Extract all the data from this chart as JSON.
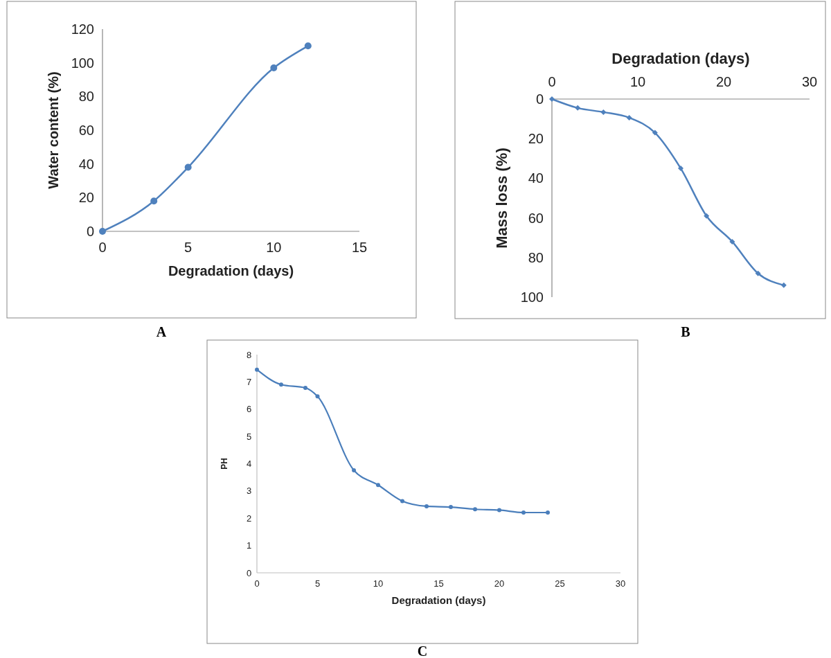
{
  "chart_data": [
    {
      "type": "line",
      "xlabel": "Degradation (days)",
      "ylabel": "Water content  (%)",
      "annotations": [
        "A"
      ],
      "x": [
        0,
        3,
        5,
        10,
        12
      ],
      "xlim": [
        0,
        15
      ],
      "xticks": [
        0,
        5,
        10,
        15
      ],
      "ylim": [
        0,
        120
      ],
      "yticks": [
        0,
        20,
        40,
        60,
        80,
        100,
        120
      ],
      "grid": false,
      "marker": "circle",
      "line_style": "solid",
      "series": [
        {
          "color": "#4f81bd",
          "values": [
            0,
            18,
            38,
            97,
            110
          ]
        }
      ]
    },
    {
      "type": "line",
      "xlabel": "Degradation (days)",
      "ylabel": "Mass loss (%)",
      "annotations": [
        "B"
      ],
      "x": [
        0,
        3,
        6,
        9,
        12,
        15,
        18,
        21,
        24,
        27
      ],
      "xlim": [
        0,
        30
      ],
      "xticks": [
        0,
        10,
        20,
        30
      ],
      "ylim": [
        100,
        0
      ],
      "yticks": [
        0,
        20,
        40,
        60,
        80,
        100
      ],
      "grid": false,
      "marker": "diamond",
      "line_style": "solid",
      "series": [
        {
          "color": "#4f81bd",
          "values": [
            0,
            4.5,
            6.6,
            9.4,
            17,
            35,
            59,
            72,
            88,
            94
          ]
        }
      ]
    },
    {
      "type": "line",
      "xlabel": "Degradation (days)",
      "ylabel": "PH",
      "annotations": [
        "C"
      ],
      "x": [
        0,
        2,
        4,
        5,
        8,
        10,
        12,
        14,
        16,
        18,
        20,
        22,
        24
      ],
      "xlim": [
        0,
        30
      ],
      "xticks": [
        0,
        5,
        10,
        15,
        20,
        25,
        30
      ],
      "ylim": [
        0,
        8
      ],
      "yticks": [
        0,
        1,
        2,
        3,
        4,
        5,
        6,
        7,
        8
      ],
      "grid": false,
      "marker": "circle",
      "line_style": "solid",
      "series": [
        {
          "color": "#4a7ebb",
          "values": [
            7.45,
            6.9,
            6.78,
            6.47,
            3.76,
            3.22,
            2.63,
            2.44,
            2.41,
            2.33,
            2.3,
            2.21,
            2.21
          ]
        }
      ]
    }
  ]
}
